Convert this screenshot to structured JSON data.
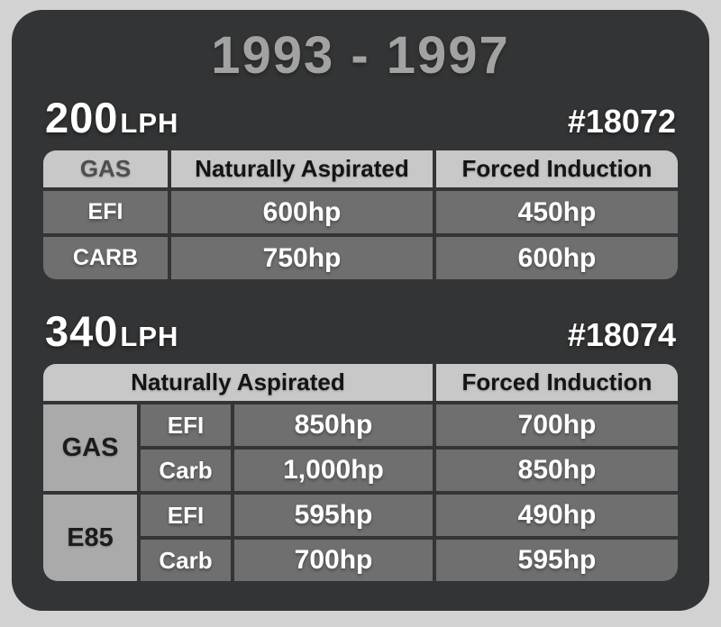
{
  "colors": {
    "page_bg": "#d2d2d2",
    "card_bg": "#333435",
    "title_text": "#a2a2a2",
    "header_cell_bg": "#c7c8c7",
    "header_text": "#141414",
    "header_muted_text": "#4e4e4e",
    "data_cell_bg": "#6f6f6f",
    "data_text": "#ffffff",
    "group_cell_bg": "#a9aaa9",
    "group_text": "#1c1c1c"
  },
  "title": "1993 - 1997",
  "sections": [
    {
      "flow_rate": "200",
      "flow_unit": "LPH",
      "part_number": "#18072",
      "table": {
        "columns": [
          "GAS",
          "Naturally Aspirated",
          "Forced Induction"
        ],
        "rows": [
          {
            "label": "EFI",
            "naturally_aspirated": "600hp",
            "forced_induction": "450hp"
          },
          {
            "label": "CARB",
            "naturally_aspirated": "750hp",
            "forced_induction": "600hp"
          }
        ]
      }
    },
    {
      "flow_rate": "340",
      "flow_unit": "LPH",
      "part_number": "#18074",
      "table": {
        "columns": [
          "Naturally Aspirated",
          "Forced Induction"
        ],
        "groups": [
          {
            "label": "GAS",
            "rows": [
              {
                "label": "EFI",
                "naturally_aspirated": "850hp",
                "forced_induction": "700hp"
              },
              {
                "label": "Carb",
                "naturally_aspirated": "1,000hp",
                "forced_induction": "850hp"
              }
            ]
          },
          {
            "label": "E85",
            "rows": [
              {
                "label": "EFI",
                "naturally_aspirated": "595hp",
                "forced_induction": "490hp"
              },
              {
                "label": "Carb",
                "naturally_aspirated": "700hp",
                "forced_induction": "595hp"
              }
            ]
          }
        ]
      }
    }
  ]
}
